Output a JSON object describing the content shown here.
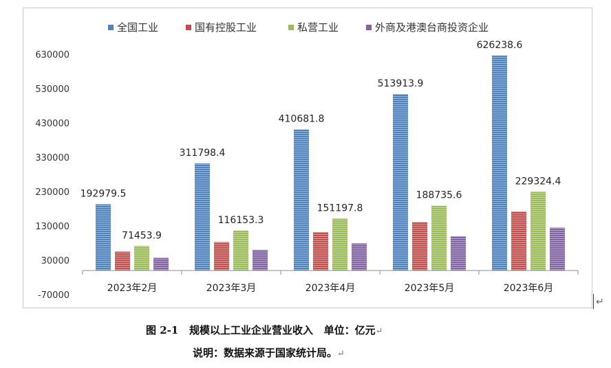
{
  "chart_data": {
    "type": "bar",
    "categories": [
      "2023年2月",
      "2023年3月",
      "2023年4月",
      "2023年5月",
      "2023年6月"
    ],
    "series": [
      {
        "name": "全国工业",
        "color": "#4f81bd",
        "values": [
          192979.5,
          311798.4,
          410681.8,
          513913.9,
          626238.6
        ],
        "data_labels": [
          "192979.5",
          "311798.4",
          "410681.8",
          "513913.9",
          "626238.6"
        ]
      },
      {
        "name": "国有控股工业",
        "color": "#c0504d",
        "values": [
          55000,
          83000,
          112000,
          141000,
          172000
        ]
      },
      {
        "name": "私营工业",
        "color": "#9bbb59",
        "values": [
          71453.9,
          116153.3,
          151197.8,
          188735.6,
          229324.4
        ],
        "data_labels": [
          "71453.9",
          "116153.3",
          "151197.8",
          "188735.6",
          "229324.4"
        ]
      },
      {
        "name": "外商及港澳台商投资企业",
        "color": "#8064a2",
        "values": [
          37000,
          60000,
          79000,
          100000,
          125000
        ]
      }
    ],
    "y_ticks": [
      "630000",
      "530000",
      "430000",
      "330000",
      "230000",
      "130000",
      "30000",
      "-70000"
    ],
    "ylim": [
      -70000,
      630000
    ],
    "legend_position": "top",
    "grid": false
  },
  "caption": "图 2-1   规模以上工业企业营业收入   单位：亿元",
  "note": "说明：数据来源于国家统计局。",
  "para_mark": "↵"
}
